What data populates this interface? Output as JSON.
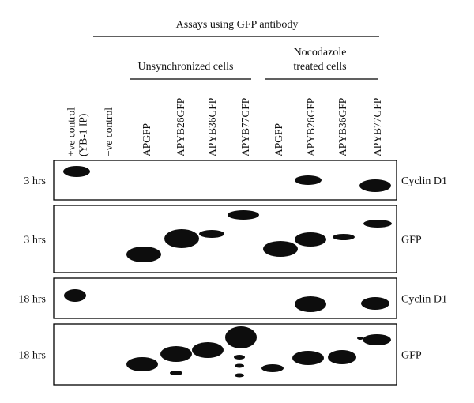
{
  "header": {
    "title": "Assays using GFP antibody"
  },
  "groups": [
    {
      "label_lines": [
        "Unsynchronized cells"
      ]
    },
    {
      "label_lines": [
        "Nocodazole",
        "treated cells"
      ]
    }
  ],
  "lanes": [
    {
      "label_lines": [
        "+ve control",
        "(YB-1 IP)"
      ]
    },
    {
      "label_lines": [
        "−ve control"
      ]
    },
    {
      "label_lines": [
        "APGFP"
      ]
    },
    {
      "label_lines": [
        "APYB26GFP"
      ]
    },
    {
      "label_lines": [
        "APYB36GFP"
      ]
    },
    {
      "label_lines": [
        "APYB77GFP"
      ]
    },
    {
      "label_lines": [
        "APGFP"
      ]
    },
    {
      "label_lines": [
        "APYB26GFP"
      ]
    },
    {
      "label_lines": [
        "APYB36GFP"
      ]
    },
    {
      "label_lines": [
        "APYB77GFP"
      ]
    }
  ],
  "panels": [
    {
      "time": "3 hrs",
      "target": "Cyclin D1"
    },
    {
      "time": "3 hrs",
      "target": "GFP"
    },
    {
      "time": "18 hrs",
      "target": "Cyclin D1"
    },
    {
      "time": "18 hrs",
      "target": "GFP"
    }
  ]
}
